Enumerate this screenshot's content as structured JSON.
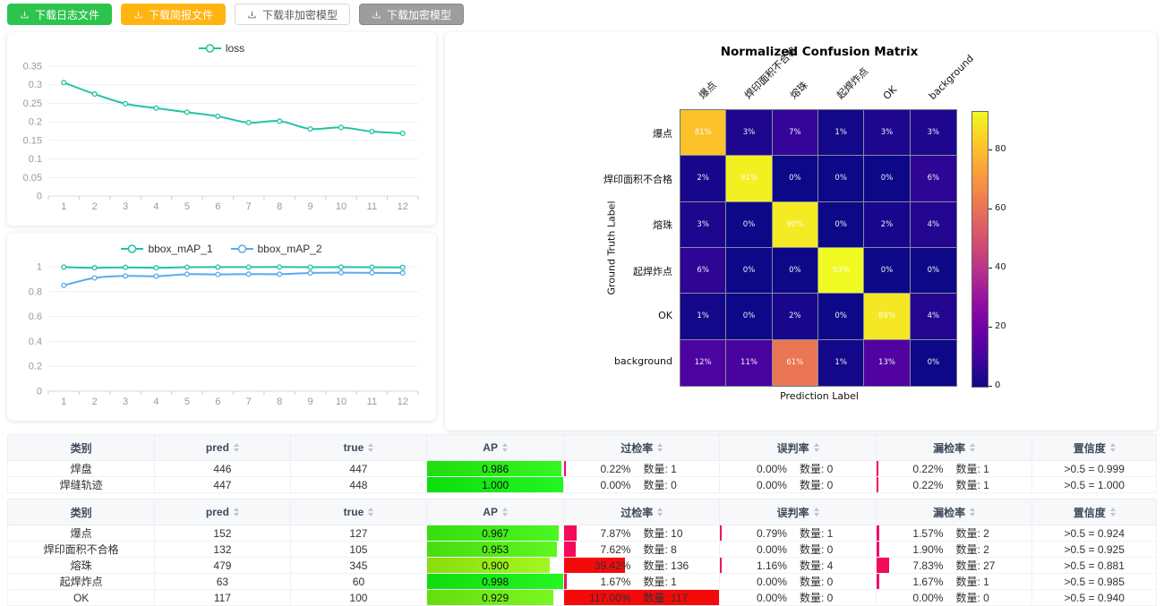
{
  "toolbar": {
    "buttons": [
      {
        "label": "下载日志文件",
        "variant": "success"
      },
      {
        "label": "下载简报文件",
        "variant": "warning"
      },
      {
        "label": "下载非加密模型",
        "variant": "plain"
      },
      {
        "label": "下载加密模型",
        "variant": "gray"
      }
    ]
  },
  "colors": {
    "teal_line": "#22c3a2",
    "blue_line": "#57abf0",
    "button_green": "#2dc44d",
    "button_orange": "#ffb412",
    "ap_bar_base": "red-to-green by value",
    "rate_bar_base": "crimson-to-red by value"
  },
  "chart_data": [
    {
      "id": "loss_chart",
      "type": "line",
      "x": [
        1,
        2,
        3,
        4,
        5,
        6,
        7,
        8,
        9,
        10,
        11,
        12
      ],
      "series": [
        {
          "name": "loss",
          "color": "#22c3a2",
          "values": [
            0.306,
            0.275,
            0.249,
            0.237,
            0.226,
            0.215,
            0.198,
            0.202,
            0.181,
            0.185,
            0.174,
            0.169
          ]
        }
      ],
      "ylim": [
        0,
        0.35
      ],
      "yticks": [
        0,
        0.05,
        0.1,
        0.15,
        0.2,
        0.25,
        0.3,
        0.35
      ],
      "ytick_labels": [
        "0",
        "0.05",
        "0.1",
        "0.15",
        "0.2",
        "0.25",
        "0.3",
        "0.35"
      ],
      "legend_position": "top",
      "grid": true
    },
    {
      "id": "map_chart",
      "type": "line",
      "x": [
        1,
        2,
        3,
        4,
        5,
        6,
        7,
        8,
        9,
        10,
        11,
        12
      ],
      "series": [
        {
          "name": "bbox_mAP_1",
          "color": "#22c3a2",
          "values": [
            0.997,
            0.992,
            0.995,
            0.992,
            0.996,
            0.997,
            0.997,
            0.998,
            0.996,
            0.997,
            0.996,
            0.995
          ]
        },
        {
          "name": "bbox_mAP_2",
          "color": "#57abf0",
          "values": [
            0.85,
            0.91,
            0.926,
            0.924,
            0.94,
            0.938,
            0.941,
            0.94,
            0.95,
            0.952,
            0.951,
            0.95
          ]
        }
      ],
      "ylim": [
        0,
        1
      ],
      "yticks": [
        0,
        0.2,
        0.4,
        0.6,
        0.8,
        1
      ],
      "ytick_labels": [
        "0",
        "0.2",
        "0.4",
        "0.6",
        "0.8",
        "1"
      ],
      "legend_position": "top",
      "grid": true
    },
    {
      "id": "confusion_matrix",
      "type": "heatmap",
      "title": "Normalized Confusion Matrix",
      "xlabel": "Prediction Label",
      "ylabel": "Ground Truth Label",
      "categories": [
        "爆点",
        "焊印面积不合格",
        "熔珠",
        "起焊炸点",
        "OK",
        "background"
      ],
      "rows": [
        [
          81,
          3,
          7,
          1,
          3,
          3
        ],
        [
          2,
          91,
          0,
          0,
          0,
          6
        ],
        [
          3,
          0,
          90,
          0,
          2,
          4
        ],
        [
          6,
          0,
          0,
          93,
          0,
          0
        ],
        [
          1,
          0,
          2,
          0,
          89,
          4
        ],
        [
          12,
          11,
          61,
          1,
          13,
          0
        ]
      ],
      "unit": "%",
      "vmin": 0,
      "vmax": 93,
      "colormap": "plasma",
      "colorbar_ticks": [
        0,
        20,
        40,
        60,
        80
      ]
    }
  ],
  "tables": [
    {
      "columns": [
        "类别",
        "pred",
        "true",
        "AP",
        "过检率",
        "误判率",
        "漏检率",
        "置信度"
      ],
      "sortable": [
        false,
        true,
        true,
        true,
        true,
        true,
        true,
        true
      ],
      "rows": [
        {
          "category": "焊盘",
          "pred": "446",
          "true": "447",
          "ap": 0.986,
          "ap_text": "0.986",
          "over": {
            "pct": 0.22,
            "text": "0.22%",
            "count": "数量: 1"
          },
          "mis": {
            "pct": 0,
            "text": "0.00%",
            "count": "数量: 0"
          },
          "miss": {
            "pct": 0.22,
            "text": "0.22%",
            "count": "数量: 1"
          },
          "conf": ">0.5 = 0.999"
        },
        {
          "category": "焊缝轨迹",
          "pred": "447",
          "true": "448",
          "ap": 1.0,
          "ap_text": "1.000",
          "over": {
            "pct": 0,
            "text": "0.00%",
            "count": "数量: 0"
          },
          "mis": {
            "pct": 0,
            "text": "0.00%",
            "count": "数量: 0"
          },
          "miss": {
            "pct": 0.22,
            "text": "0.22%",
            "count": "数量: 1"
          },
          "conf": ">0.5 = 1.000"
        }
      ]
    },
    {
      "columns": [
        "类别",
        "pred",
        "true",
        "AP",
        "过检率",
        "误判率",
        "漏检率",
        "置信度"
      ],
      "sortable": [
        false,
        true,
        true,
        true,
        true,
        true,
        true,
        true
      ],
      "rows": [
        {
          "category": "爆点",
          "pred": "152",
          "true": "127",
          "ap": 0.967,
          "ap_text": "0.967",
          "over": {
            "pct": 7.87,
            "text": "7.87%",
            "count": "数量: 10"
          },
          "mis": {
            "pct": 0.79,
            "text": "0.79%",
            "count": "数量: 1"
          },
          "miss": {
            "pct": 1.57,
            "text": "1.57%",
            "count": "数量: 2"
          },
          "conf": ">0.5 = 0.924"
        },
        {
          "category": "焊印面积不合格",
          "pred": "132",
          "true": "105",
          "ap": 0.953,
          "ap_text": "0.953",
          "over": {
            "pct": 7.62,
            "text": "7.62%",
            "count": "数量: 8"
          },
          "mis": {
            "pct": 0,
            "text": "0.00%",
            "count": "数量: 0"
          },
          "miss": {
            "pct": 1.9,
            "text": "1.90%",
            "count": "数量: 2"
          },
          "conf": ">0.5 = 0.925"
        },
        {
          "category": "熔珠",
          "pred": "479",
          "true": "345",
          "ap": 0.9,
          "ap_text": "0.900",
          "over": {
            "pct": 39.42,
            "text": "39.42%",
            "count": "数量: 136"
          },
          "mis": {
            "pct": 1.16,
            "text": "1.16%",
            "count": "数量: 4"
          },
          "miss": {
            "pct": 7.83,
            "text": "7.83%",
            "count": "数量: 27"
          },
          "conf": ">0.5 = 0.881"
        },
        {
          "category": "起焊炸点",
          "pred": "63",
          "true": "60",
          "ap": 0.998,
          "ap_text": "0.998",
          "over": {
            "pct": 1.67,
            "text": "1.67%",
            "count": "数量: 1"
          },
          "mis": {
            "pct": 0,
            "text": "0.00%",
            "count": "数量: 0"
          },
          "miss": {
            "pct": 1.67,
            "text": "1.67%",
            "count": "数量: 1"
          },
          "conf": ">0.5 = 0.985"
        },
        {
          "category": "OK",
          "pred": "117",
          "true": "100",
          "ap": 0.929,
          "ap_text": "0.929",
          "over": {
            "pct": 117.0,
            "text": "117.00%",
            "count": "数量: 117"
          },
          "mis": {
            "pct": 0,
            "text": "0.00%",
            "count": "数量: 0"
          },
          "miss": {
            "pct": 0,
            "text": "0.00%",
            "count": "数量: 0"
          },
          "conf": ">0.5 = 0.940"
        }
      ]
    }
  ]
}
